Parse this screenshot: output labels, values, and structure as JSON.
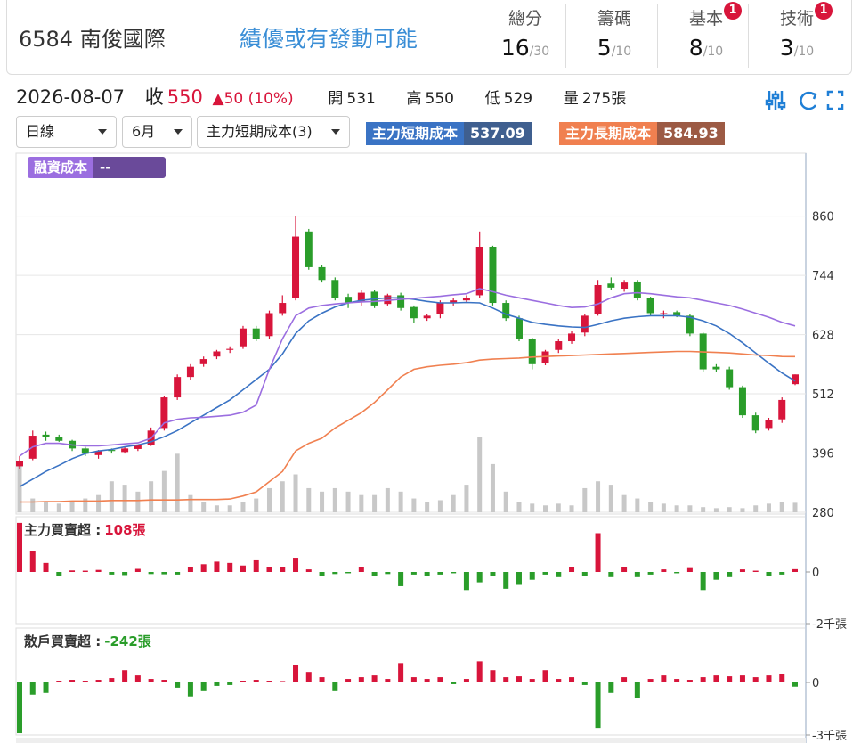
{
  "header": {
    "code_name": "6584 南俊國際",
    "tagline": "績優或有發動可能",
    "scores": [
      {
        "label": "總分",
        "value": 16,
        "max": "/30"
      },
      {
        "label": "籌碼",
        "value": 5,
        "max": "/10"
      },
      {
        "label": "基本",
        "value": 8,
        "max": "/10",
        "badge": "1"
      },
      {
        "label": "技術",
        "value": 3,
        "max": "/10",
        "badge": "1"
      }
    ]
  },
  "quote": {
    "date": "2026-08-07",
    "close_label": "收",
    "close": 550,
    "change": "▲50 (10%)",
    "open_label": "開",
    "open": 531,
    "high_label": "高",
    "high": 550,
    "low_label": "低",
    "low": 529,
    "volume_label": "量",
    "volume": "275張"
  },
  "controls": [
    "日線",
    "6月",
    "主力短期成本(3)"
  ],
  "chart_data": [
    {
      "type": "candlestick",
      "ylim": [
        280,
        978
      ],
      "yticks": [
        280,
        396,
        512,
        628,
        744,
        860
      ],
      "grid": true,
      "up_color": "#d8153b",
      "down_color": "#2a9d2a",
      "volume_color": "#c8c8c8",
      "open": [
        370,
        385,
        432,
        428,
        420,
        405,
        392,
        402,
        398,
        404,
        412,
        445,
        505,
        545,
        570,
        585,
        598,
        605,
        640,
        625,
        670,
        700,
        830,
        760,
        735,
        702,
        692,
        712,
        688,
        705,
        682,
        660,
        668,
        690,
        695,
        705,
        800,
        690,
        660,
        620,
        572,
        598,
        615,
        632,
        668,
        728,
        718,
        732,
        700,
        668,
        672,
        665,
        630,
        565,
        560,
        525,
        470,
        445,
        462,
        531
      ],
      "high": [
        390,
        440,
        438,
        432,
        422,
        408,
        402,
        405,
        408,
        412,
        446,
        508,
        550,
        570,
        585,
        598,
        605,
        645,
        645,
        675,
        705,
        860,
        835,
        765,
        740,
        708,
        715,
        715,
        708,
        710,
        685,
        668,
        695,
        700,
        705,
        830,
        802,
        695,
        665,
        622,
        598,
        620,
        635,
        668,
        735,
        740,
        735,
        735,
        702,
        675,
        675,
        668,
        632,
        570,
        565,
        528,
        475,
        465,
        505,
        550
      ],
      "low": [
        365,
        382,
        420,
        418,
        400,
        390,
        385,
        395,
        395,
        400,
        410,
        440,
        500,
        540,
        565,
        580,
        592,
        600,
        615,
        620,
        665,
        695,
        755,
        730,
        695,
        680,
        685,
        680,
        685,
        675,
        650,
        655,
        660,
        685,
        690,
        700,
        685,
        655,
        615,
        560,
        568,
        592,
        610,
        625,
        665,
        715,
        712,
        695,
        665,
        660,
        662,
        625,
        555,
        555,
        520,
        465,
        435,
        440,
        455,
        529
      ],
      "close": [
        380,
        430,
        428,
        420,
        405,
        395,
        400,
        400,
        405,
        412,
        440,
        505,
        545,
        565,
        580,
        595,
        600,
        640,
        620,
        670,
        690,
        820,
        760,
        735,
        700,
        690,
        710,
        685,
        705,
        680,
        660,
        665,
        690,
        695,
        700,
        800,
        690,
        660,
        620,
        570,
        595,
        615,
        630,
        665,
        725,
        720,
        730,
        700,
        670,
        670,
        665,
        630,
        560,
        560,
        525,
        470,
        440,
        460,
        500,
        550
      ],
      "volume": [
        1400,
        400,
        300,
        250,
        300,
        400,
        500,
        900,
        800,
        600,
        900,
        1200,
        1700,
        500,
        300,
        200,
        200,
        300,
        400,
        700,
        900,
        1100,
        700,
        600,
        700,
        600,
        500,
        500,
        700,
        600,
        400,
        300,
        350,
        500,
        800,
        2200,
        1400,
        600,
        300,
        250,
        200,
        250,
        200,
        700,
        900,
        800,
        500,
        400,
        300,
        250,
        200,
        200,
        150,
        120,
        150,
        120,
        200,
        250,
        300,
        275
      ],
      "series": [
        {
          "name": "主力短期成本",
          "color": "#3a73c4",
          "label_color": "#3f5f8f",
          "last_label": "537.09",
          "values": [
            330,
            345,
            360,
            372,
            385,
            395,
            400,
            403,
            408,
            412,
            418,
            428,
            440,
            455,
            470,
            485,
            500,
            520,
            540,
            560,
            590,
            630,
            655,
            670,
            682,
            690,
            695,
            698,
            700,
            700,
            697,
            693,
            690,
            690,
            691,
            690,
            680,
            668,
            660,
            652,
            648,
            645,
            643,
            642,
            648,
            655,
            660,
            663,
            665,
            665,
            665,
            662,
            655,
            645,
            630,
            612,
            592,
            572,
            553,
            537.09
          ]
        },
        {
          "name": "主力長期成本",
          "color": "#f08050",
          "label_color": "#9c5a44",
          "last_label": "584.93",
          "values": [
            300,
            300,
            301,
            301,
            302,
            302,
            302,
            303,
            303,
            303,
            304,
            304,
            304,
            305,
            305,
            305,
            306,
            312,
            320,
            340,
            360,
            400,
            415,
            425,
            445,
            460,
            475,
            495,
            520,
            545,
            560,
            565,
            568,
            570,
            573,
            578,
            580,
            581,
            582,
            584,
            585,
            586,
            587,
            588,
            589,
            590,
            591,
            592,
            593,
            594,
            595,
            595,
            594,
            593,
            592,
            590,
            588,
            587,
            585,
            584.93
          ]
        },
        {
          "name": "融資成本",
          "color": "#9b6ee0",
          "label_color": "#6a4a9a",
          "last_label": "--",
          "values": [
            390,
            408,
            415,
            415,
            412,
            410,
            410,
            412,
            414,
            416,
            425,
            455,
            462,
            465,
            466,
            468,
            470,
            476,
            490,
            560,
            620,
            665,
            680,
            685,
            688,
            690,
            692,
            693,
            695,
            697,
            699,
            701,
            703,
            706,
            708,
            718,
            712,
            705,
            700,
            695,
            690,
            685,
            681,
            682,
            688,
            700,
            708,
            710,
            708,
            705,
            702,
            700,
            695,
            690,
            685,
            678,
            670,
            662,
            652,
            645
          ]
        }
      ]
    },
    {
      "type": "bar",
      "title": "主力買賣超 :",
      "current": "108張",
      "current_color": "#d8153b",
      "ylim": [
        -2000,
        2138
      ],
      "yticks": [
        0,
        {
          "value": -2000,
          "label": "-2千張"
        }
      ],
      "up_color": "#d8153b",
      "down_color": "#2a9d2a",
      "values": [
        1900,
        800,
        350,
        -150,
        60,
        50,
        80,
        -100,
        -120,
        120,
        -80,
        -90,
        -100,
        200,
        300,
        400,
        350,
        250,
        450,
        200,
        180,
        550,
        100,
        -150,
        -80,
        -50,
        200,
        -150,
        -80,
        -550,
        -100,
        -150,
        -100,
        -50,
        -700,
        -400,
        -150,
        -650,
        -500,
        -300,
        -100,
        -200,
        200,
        -150,
        1500,
        -200,
        200,
        -200,
        -100,
        100,
        -50,
        150,
        -700,
        -300,
        -200,
        100,
        50,
        -150,
        -100,
        108
      ]
    },
    {
      "type": "bar",
      "title": "散戶買賣超 :",
      "current": "-242張",
      "current_color": "#2a9d2a",
      "ylim": [
        -3000,
        3100
      ],
      "yticks": [
        0,
        {
          "value": -3000,
          "label": "-3千張"
        }
      ],
      "up_color": "#d8153b",
      "down_color": "#2a9d2a",
      "values": [
        -2900,
        -700,
        -600,
        100,
        150,
        100,
        150,
        250,
        700,
        400,
        200,
        150,
        -300,
        -800,
        -500,
        -200,
        -150,
        100,
        150,
        100,
        80,
        1000,
        600,
        300,
        -500,
        200,
        300,
        400,
        200,
        1100,
        300,
        200,
        300,
        -100,
        200,
        1200,
        700,
        300,
        350,
        200,
        700,
        200,
        300,
        -150,
        -2600,
        -600,
        300,
        -900,
        200,
        400,
        200,
        150,
        300,
        400,
        350,
        400,
        300,
        400,
        500,
        -242
      ]
    }
  ]
}
